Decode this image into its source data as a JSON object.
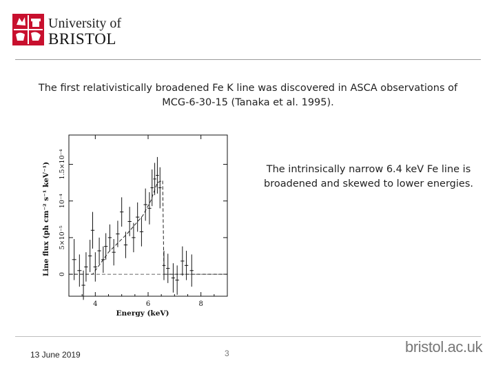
{
  "header": {
    "logo_line1": "University of",
    "logo_line2": "BRISTOL"
  },
  "slide": {
    "heading": "The first relativistically broadened Fe K line was discovered in ASCA observations of MCG-6-30-15 (Tanaka et al. 1995).",
    "note": "The intrinsically narrow 6.4 keV Fe line is broadened and skewed to lower energies."
  },
  "footer": {
    "date": "13 June 2019",
    "page_number": "3",
    "website": "bristol.ac.uk"
  },
  "colors": {
    "logo_red": "#c8102e",
    "rule": "#9a9a9a",
    "website_text": "#777777"
  },
  "chart_data": {
    "type": "scatter",
    "xlabel": "Energy (keV)",
    "ylabel": "Line flux (ph cm⁻² s⁻¹ keV⁻¹)",
    "xlim": [
      3,
      9
    ],
    "ylim": [
      -3e-05,
      0.00019
    ],
    "xticks": [
      4,
      6,
      8
    ],
    "xtick_labels": [
      "4",
      "6",
      "8"
    ],
    "yticks": [
      0,
      5e-05,
      0.0001,
      0.00015
    ],
    "ytick_labels": [
      "0",
      "5×10⁻⁵",
      "10⁻⁴",
      "1.5×10⁻⁴"
    ],
    "series": [
      {
        "type": "errorbar",
        "points": [
          {
            "x": 3.2,
            "y": 2e-05,
            "yerr": 2.8e-05,
            "xerr": 0.08
          },
          {
            "x": 3.4,
            "y": 5e-06,
            "yerr": 2.2e-05,
            "xerr": 0.08
          },
          {
            "x": 3.55,
            "y": -1.5e-05,
            "yerr": 2e-05,
            "xerr": 0.07
          },
          {
            "x": 3.65,
            "y": 1e-05,
            "yerr": 2e-05,
            "xerr": 0.07
          },
          {
            "x": 3.8,
            "y": 2.5e-05,
            "yerr": 2.2e-05,
            "xerr": 0.07
          },
          {
            "x": 3.9,
            "y": 6e-05,
            "yerr": 2.5e-05,
            "xerr": 0.07
          },
          {
            "x": 4.0,
            "y": 1e-05,
            "yerr": 2e-05,
            "xerr": 0.07
          },
          {
            "x": 4.15,
            "y": 3.2e-05,
            "yerr": 1.8e-05,
            "xerr": 0.07
          },
          {
            "x": 4.3,
            "y": 2e-05,
            "yerr": 1.8e-05,
            "xerr": 0.07
          },
          {
            "x": 4.4,
            "y": 3.8e-05,
            "yerr": 1.8e-05,
            "xerr": 0.07
          },
          {
            "x": 4.55,
            "y": 5e-05,
            "yerr": 1.8e-05,
            "xerr": 0.07
          },
          {
            "x": 4.7,
            "y": 3e-05,
            "yerr": 1.8e-05,
            "xerr": 0.07
          },
          {
            "x": 4.85,
            "y": 5.5e-05,
            "yerr": 1.8e-05,
            "xerr": 0.07
          },
          {
            "x": 5.0,
            "y": 8.5e-05,
            "yerr": 2e-05,
            "xerr": 0.07
          },
          {
            "x": 5.15,
            "y": 4e-05,
            "yerr": 1.8e-05,
            "xerr": 0.07
          },
          {
            "x": 5.3,
            "y": 7.2e-05,
            "yerr": 2e-05,
            "xerr": 0.07
          },
          {
            "x": 5.45,
            "y": 5e-05,
            "yerr": 2e-05,
            "xerr": 0.07
          },
          {
            "x": 5.6,
            "y": 7.8e-05,
            "yerr": 2e-05,
            "xerr": 0.07
          },
          {
            "x": 5.75,
            "y": 5.8e-05,
            "yerr": 2e-05,
            "xerr": 0.07
          },
          {
            "x": 5.9,
            "y": 9.5e-05,
            "yerr": 2.2e-05,
            "xerr": 0.07
          },
          {
            "x": 6.05,
            "y": 9e-05,
            "yerr": 2.2e-05,
            "xerr": 0.07
          },
          {
            "x": 6.15,
            "y": 0.000118,
            "yerr": 2.5e-05,
            "xerr": 0.06
          },
          {
            "x": 6.25,
            "y": 0.00013,
            "yerr": 2.2e-05,
            "xerr": 0.06
          },
          {
            "x": 6.35,
            "y": 0.000135,
            "yerr": 2.5e-05,
            "xerr": 0.06
          },
          {
            "x": 6.45,
            "y": 0.000118,
            "yerr": 2.8e-05,
            "xerr": 0.06
          },
          {
            "x": 6.6,
            "y": 1.2e-05,
            "yerr": 2e-05,
            "xerr": 0.06
          },
          {
            "x": 6.75,
            "y": 8e-06,
            "yerr": 2e-05,
            "xerr": 0.07
          },
          {
            "x": 6.95,
            "y": -5e-06,
            "yerr": 2e-05,
            "xerr": 0.07
          },
          {
            "x": 7.1,
            "y": -8e-06,
            "yerr": 2e-05,
            "xerr": 0.07
          },
          {
            "x": 7.3,
            "y": 1.8e-05,
            "yerr": 2e-05,
            "xerr": 0.07
          },
          {
            "x": 7.45,
            "y": 1.2e-05,
            "yerr": 2e-05,
            "xerr": 0.07
          },
          {
            "x": 7.65,
            "y": 5e-06,
            "yerr": 2.2e-05,
            "xerr": 0.07
          }
        ]
      },
      {
        "type": "line",
        "style": "dashed",
        "x": [
          3.0,
          3.9,
          4.5,
          5.2,
          5.8,
          6.1,
          6.35,
          6.55,
          6.6,
          8.5,
          9.0
        ],
        "y": [
          0,
          0,
          3e-05,
          5.5e-05,
          8e-05,
          0.0001,
          0.000125,
          0.000128,
          0,
          0,
          0
        ]
      }
    ]
  }
}
